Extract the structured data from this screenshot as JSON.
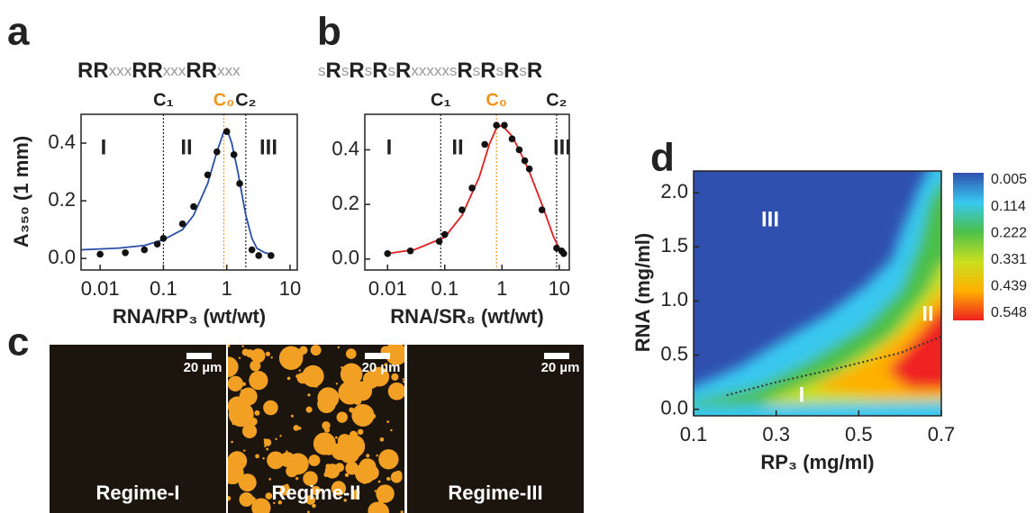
{
  "chart_data": [
    {
      "type": "scatter",
      "panel": "a",
      "sequence": "RRxxxRRxxxRRxxx",
      "xlabel": "RNA/RP₃ (wt/wt)",
      "ylabel": "A₃₅₀ (1 mm)",
      "xscale": "log",
      "xlim": [
        0.005,
        13
      ],
      "ylim": [
        -0.04,
        0.5
      ],
      "xticks": [
        0.01,
        0.1,
        1,
        10
      ],
      "yticks": [
        {
          "value": 0,
          "label": "0.0"
        },
        0.2,
        0.4
      ],
      "markers": [
        {
          "label": "C₁",
          "x": 0.1,
          "color": "#222222"
        },
        {
          "label": "C₀",
          "x": 0.9,
          "color": "#f0961e"
        },
        {
          "label": "C₂",
          "x": 2,
          "color": "#222222"
        }
      ],
      "regime_labels": [
        "I",
        "II",
        "III"
      ],
      "points": {
        "color": "#111111",
        "x": [
          0.01,
          0.025,
          0.05,
          0.08,
          0.1,
          0.2,
          0.3,
          0.5,
          0.7,
          1.0,
          1.3,
          1.6,
          2.5,
          3.2,
          5
        ],
        "y": [
          0.015,
          0.02,
          0.03,
          0.05,
          0.07,
          0.12,
          0.18,
          0.29,
          0.37,
          0.44,
          0.36,
          0.26,
          0.03,
          0.01,
          0.01
        ]
      },
      "fit": {
        "color": "#2a4fa8",
        "x": [
          0.005,
          0.01,
          0.02,
          0.05,
          0.1,
          0.2,
          0.3,
          0.5,
          0.7,
          0.9,
          1.0,
          1.2,
          1.5,
          2,
          2.5,
          3,
          4,
          5
        ],
        "y": [
          0.03,
          0.033,
          0.036,
          0.045,
          0.065,
          0.1,
          0.15,
          0.26,
          0.37,
          0.44,
          0.45,
          0.4,
          0.3,
          0.15,
          0.07,
          0.035,
          0.02,
          0.015
        ]
      }
    },
    {
      "type": "scatter",
      "panel": "b",
      "sequence": "sRsRsRsRxxxxxsRsRsRsR",
      "xlabel": "RNA/SR₈ (wt/wt)",
      "xscale": "log",
      "xlim": [
        0.004,
        15
      ],
      "ylim": [
        -0.04,
        0.53
      ],
      "xticks": [
        0.01,
        0.1,
        1,
        10
      ],
      "yticks": [
        {
          "value": 0,
          "label": "0.0"
        },
        0.2,
        0.4
      ],
      "markers": [
        {
          "label": "C₁",
          "x": 0.085,
          "color": "#222222"
        },
        {
          "label": "C₀",
          "x": 0.8,
          "color": "#f0961e"
        },
        {
          "label": "C₂",
          "x": 9,
          "color": "#222222"
        }
      ],
      "regime_labels": [
        "I",
        "II",
        "III"
      ],
      "points": {
        "color": "#111111",
        "x": [
          0.01,
          0.025,
          0.08,
          0.1,
          0.2,
          0.3,
          0.5,
          0.8,
          1.1,
          1.5,
          2,
          2.5,
          3,
          5,
          9,
          11,
          12
        ],
        "y": [
          0.02,
          0.03,
          0.065,
          0.09,
          0.18,
          0.26,
          0.42,
          0.49,
          0.49,
          0.44,
          0.4,
          0.36,
          0.33,
          0.18,
          0.04,
          0.03,
          0.02
        ]
      },
      "fit": {
        "color": "#e02020",
        "x": [
          0.01,
          0.03,
          0.1,
          0.2,
          0.4,
          0.6,
          0.8,
          1,
          1.5,
          2,
          3,
          5,
          8,
          10,
          12
        ],
        "y": [
          0.02,
          0.035,
          0.08,
          0.16,
          0.3,
          0.42,
          0.48,
          0.49,
          0.45,
          0.4,
          0.32,
          0.2,
          0.08,
          0.04,
          0.025
        ]
      }
    },
    {
      "type": "heatmap",
      "panel": "d",
      "xlabel": "RP₃ (mg/ml)",
      "ylabel": "RNA (mg/ml)",
      "xlim": [
        0.1,
        0.7
      ],
      "ylim": [
        -0.06,
        2.2
      ],
      "xticks": [
        0.1,
        0.3,
        0.5,
        0.7
      ],
      "yticks": [
        {
          "value": 0,
          "label": "0.0"
        },
        0.5,
        {
          "value": 1,
          "label": "1.0"
        },
        1.5,
        {
          "value": 2,
          "label": "2.0"
        }
      ],
      "regime_labels": [
        "I",
        "II",
        "III"
      ],
      "boundary": {
        "color": "#333333",
        "x": [
          0.18,
          0.3,
          0.45,
          0.6,
          0.7
        ],
        "y": [
          0.13,
          0.25,
          0.38,
          0.52,
          0.67
        ]
      },
      "colorbar": {
        "ticks": [
          0.005,
          0.114,
          0.222,
          0.331,
          0.439,
          0.548
        ],
        "colors": [
          "#3050b0",
          "#38c8f0",
          "#4cc04a",
          "#c8e020",
          "#ffb000",
          "#f02020"
        ]
      }
    }
  ],
  "panel_c": {
    "panel": "c",
    "images": [
      {
        "label": "Regime-I",
        "scale_bar": "20 µm"
      },
      {
        "label": "Regime-II",
        "scale_bar": "20 µm"
      },
      {
        "label": "Regime-III",
        "scale_bar": "20 µm"
      }
    ]
  }
}
